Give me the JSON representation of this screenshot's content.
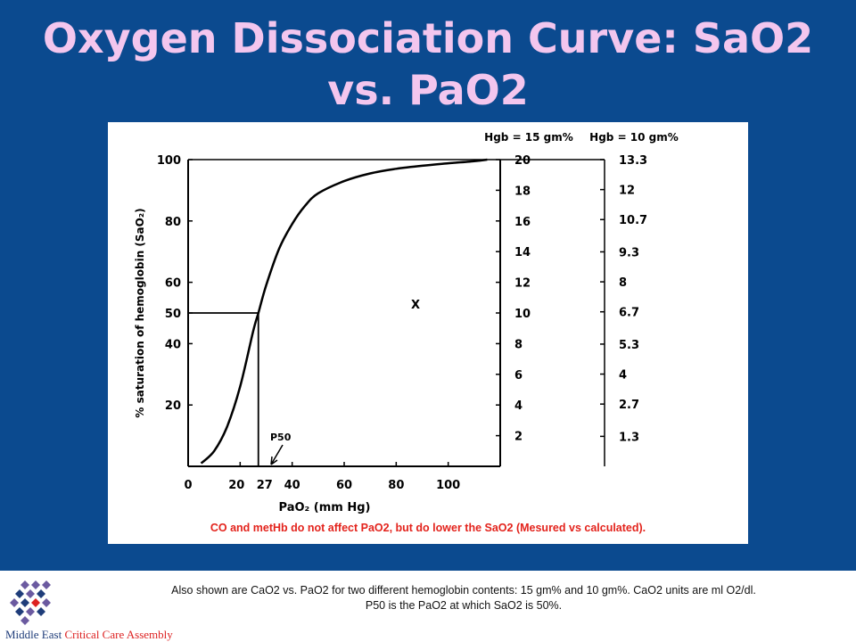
{
  "slide": {
    "title_line1": "Oxygen Dissociation Curve:  SaO2",
    "title_line2": "vs. PaO2"
  },
  "chart_data": {
    "type": "line",
    "xlabel": "PaO₂ (mm Hg)",
    "ylabel": "% saturation of hemoglobin (SaO₂)",
    "xlim": [
      0,
      120
    ],
    "ylim": [
      0,
      100
    ],
    "x_ticks": [
      "0",
      "20",
      "27",
      "40",
      "60",
      "80",
      "100"
    ],
    "y_ticks": [
      "100",
      "80",
      "60",
      "50",
      "40",
      "20"
    ],
    "series": [
      {
        "x": [
          5,
          10,
          15,
          20,
          25,
          27,
          30,
          35,
          40,
          45,
          50,
          60,
          70,
          80,
          90,
          100,
          110,
          115
        ],
        "y": [
          1,
          5,
          13,
          26,
          44,
          50,
          59,
          71,
          79,
          85,
          89,
          93,
          95.5,
          97,
          98,
          98.8,
          99.5,
          100
        ]
      }
    ],
    "right_axis_1": {
      "label": "Hgb = 15 gm%",
      "ticks": [
        "20",
        "18",
        "16",
        "14",
        "12",
        "10",
        "8",
        "6",
        "4",
        "2"
      ]
    },
    "right_axis_2": {
      "label": "Hgb = 10 gm%",
      "ticks": [
        "13.3",
        "12",
        "10.7",
        "9.3",
        "8",
        "6.7",
        "5.3",
        "4",
        "2.7",
        "1.3"
      ]
    },
    "annotations": {
      "p50": "P50",
      "x_mark": "X"
    },
    "note": "CO and metHb do not affect PaO2, but do lower the SaO2 (Mesured vs calculated)."
  },
  "footer": {
    "line1": "Also shown are CaO2 vs. PaO2 for two different hemoglobin contents:  15 gm% and 10 gm%.  CaO2 units are ml O2/dl.",
    "line2": "P50 is the PaO2 at which SaO2 is 50%.",
    "logo_word1": "Middle East",
    "logo_word2": "Critical Care Assembly",
    "colors": {
      "navy": "#1f3d7a",
      "purple": "#6b5aa0",
      "red": "#d22"
    }
  }
}
